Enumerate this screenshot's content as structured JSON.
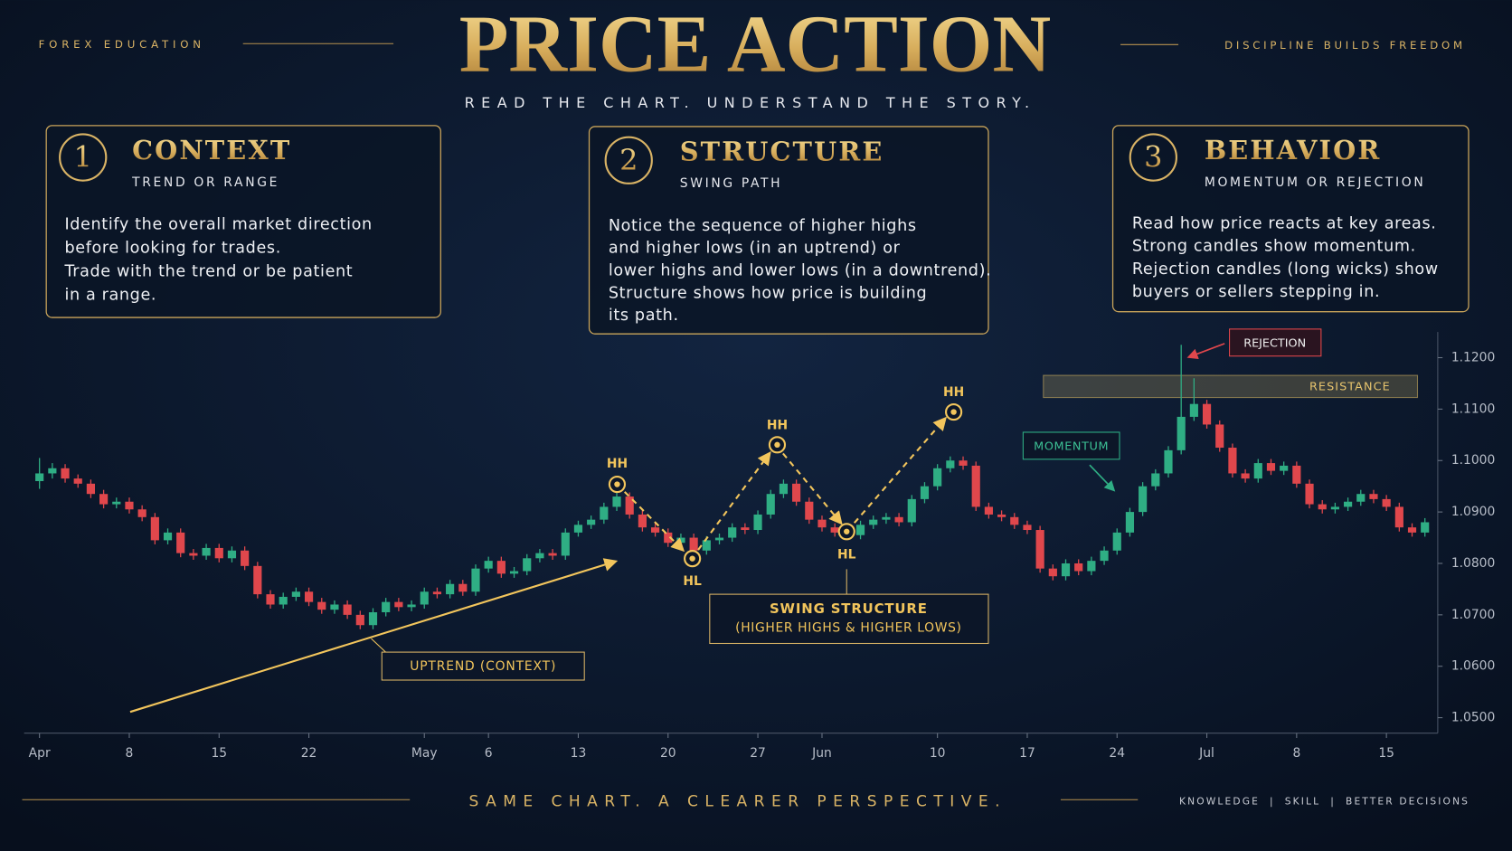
{
  "header": {
    "left_tag": "FOREX EDUCATION",
    "title": "PRICE ACTION",
    "subtitle": "READ THE CHART. UNDERSTAND THE STORY.",
    "right_tag": "DISCIPLINE BUILDS FREEDOM"
  },
  "cards": [
    {
      "number": "1",
      "title": "CONTEXT",
      "subtitle": "TREND OR RANGE",
      "body": [
        "Identify the overall market direction",
        "before looking for trades.",
        "Trade with the trend or be patient",
        "in a range."
      ]
    },
    {
      "number": "2",
      "title": "STRUCTURE",
      "subtitle": "SWING PATH",
      "body": [
        "Notice the sequence of higher highs",
        "and higher lows (in an uptrend) or",
        "lower highs and lower lows (in a downtrend).",
        "Structure shows how price is building",
        "its path."
      ]
    },
    {
      "number": "3",
      "title": "BEHAVIOR",
      "subtitle": "MOMENTUM OR REJECTION",
      "body": [
        "Read how price reacts at key areas.",
        "Strong candles show momentum.",
        "Rejection candles (long wicks) show",
        "buyers or sellers stepping in."
      ]
    }
  ],
  "chart_data": {
    "type": "candlestick",
    "up_color": "#2fae84",
    "down_color": "#e0474c",
    "xlim": [
      -1.5,
      109
    ],
    "xticks": [
      {
        "value": 0,
        "label": "Apr"
      },
      {
        "value": 7,
        "label": "8"
      },
      {
        "value": 14,
        "label": "15"
      },
      {
        "value": 21,
        "label": "22"
      },
      {
        "value": 30,
        "label": "May"
      },
      {
        "value": 35,
        "label": "6"
      },
      {
        "value": 42,
        "label": "13"
      },
      {
        "value": 49,
        "label": "20"
      },
      {
        "value": 56,
        "label": "27"
      },
      {
        "value": 61,
        "label": "Jun"
      },
      {
        "value": 70,
        "label": "10"
      },
      {
        "value": 77,
        "label": "17"
      },
      {
        "value": 84,
        "label": "24"
      },
      {
        "value": 91,
        "label": "Jul"
      },
      {
        "value": 98,
        "label": "8"
      },
      {
        "value": 105,
        "label": "15"
      }
    ],
    "ylim": [
      1.047,
      1.125
    ],
    "yticks": [
      {
        "value": 1.05,
        "label": "1.0500"
      },
      {
        "value": 1.06,
        "label": "1.0600"
      },
      {
        "value": 1.07,
        "label": "1.0700"
      },
      {
        "value": 1.08,
        "label": "1.0800"
      },
      {
        "value": 1.09,
        "label": "1.0900"
      },
      {
        "value": 1.1,
        "label": "1.1000"
      },
      {
        "value": 1.11,
        "label": "1.1100"
      },
      {
        "value": 1.12,
        "label": "1.1200"
      }
    ],
    "open": [
      1.096,
      1.0975,
      1.0985,
      1.0965,
      1.0955,
      1.0935,
      1.0915,
      1.092,
      1.0905,
      1.089,
      1.0845,
      1.086,
      1.082,
      1.0815,
      1.083,
      1.081,
      1.0825,
      1.0795,
      1.074,
      1.072,
      1.0735,
      1.0745,
      1.0725,
      1.071,
      1.072,
      1.07,
      1.068,
      1.0705,
      1.0725,
      1.0715,
      1.072,
      1.0745,
      1.074,
      1.076,
      1.0745,
      1.079,
      1.0805,
      1.078,
      1.0785,
      1.081,
      1.082,
      1.0815,
      1.086,
      1.0875,
      1.0885,
      1.091,
      1.093,
      1.0895,
      1.087,
      1.086,
      1.084,
      1.085,
      1.0825,
      1.0845,
      1.085,
      1.087,
      1.0865,
      1.0895,
      1.0935,
      1.0955,
      1.092,
      1.0885,
      1.087,
      1.086,
      1.0855,
      1.0875,
      1.0885,
      1.089,
      1.088,
      1.0925,
      1.095,
      1.0985,
      1.1,
      1.099,
      1.091,
      1.0895,
      1.089,
      1.0875,
      1.0865,
      1.079,
      1.0775,
      1.08,
      1.0785,
      1.0805,
      1.0825,
      1.086,
      1.09,
      1.095,
      1.0975,
      1.102,
      1.1085,
      1.111,
      1.107,
      1.1025,
      1.0975,
      1.0965,
      1.0995,
      1.098,
      1.099,
      1.0955,
      1.0915,
      1.0905,
      1.091,
      1.092,
      1.0935,
      1.0925,
      1.091,
      1.087,
      1.086
    ],
    "high": [
      1.1005,
      1.0995,
      1.0993,
      1.0973,
      1.0963,
      1.0943,
      1.0928,
      1.0928,
      1.0913,
      1.0898,
      1.0868,
      1.0868,
      1.0828,
      1.0838,
      1.0838,
      1.0833,
      1.0833,
      1.0803,
      1.0748,
      1.0743,
      1.0753,
      1.0753,
      1.0733,
      1.0728,
      1.0728,
      1.0708,
      1.0713,
      1.0733,
      1.0733,
      1.0728,
      1.0753,
      1.0753,
      1.0768,
      1.0768,
      1.0798,
      1.0813,
      1.0813,
      1.0793,
      1.0818,
      1.0828,
      1.0828,
      1.0868,
      1.0883,
      1.0893,
      1.0918,
      1.0938,
      1.0938,
      1.0903,
      1.0878,
      1.0868,
      1.0858,
      1.0858,
      1.0853,
      1.0858,
      1.0878,
      1.0878,
      1.0903,
      1.0943,
      1.0963,
      1.0963,
      1.0928,
      1.0893,
      1.0878,
      1.0868,
      1.0883,
      1.0893,
      1.0898,
      1.0898,
      1.0933,
      1.0958,
      1.0993,
      1.1008,
      1.1008,
      1.0998,
      1.0918,
      1.0903,
      1.0898,
      1.0883,
      1.0873,
      1.0798,
      1.0808,
      1.0808,
      1.0813,
      1.0833,
      1.0868,
      1.0908,
      1.0958,
      1.0983,
      1.1028,
      1.1225,
      1.116,
      1.1118,
      1.1078,
      1.1033,
      1.0983,
      1.1003,
      1.1003,
      1.0998,
      1.0998,
      1.0963,
      1.0923,
      1.0918,
      1.0928,
      1.0943,
      1.0943,
      1.0933,
      1.0918,
      1.0878,
      1.0888
    ],
    "low": [
      1.0945,
      1.0965,
      1.0957,
      1.0947,
      1.0927,
      1.0907,
      1.0907,
      1.0897,
      1.0882,
      1.0837,
      1.0837,
      1.0812,
      1.0807,
      1.0807,
      1.0802,
      1.0802,
      1.0787,
      1.0732,
      1.0712,
      1.0712,
      1.0727,
      1.0717,
      1.0702,
      1.0702,
      1.0692,
      1.0672,
      1.0672,
      1.0697,
      1.0707,
      1.0707,
      1.0712,
      1.0732,
      1.0732,
      1.0737,
      1.0737,
      1.0782,
      1.0772,
      1.0772,
      1.0777,
      1.0802,
      1.0807,
      1.0807,
      1.0852,
      1.0867,
      1.0877,
      1.0902,
      1.0887,
      1.0862,
      1.0852,
      1.0832,
      1.0832,
      1.0817,
      1.0817,
      1.0837,
      1.0842,
      1.0857,
      1.0857,
      1.0887,
      1.0927,
      1.0912,
      1.0877,
      1.0862,
      1.0852,
      1.0847,
      1.0847,
      1.0867,
      1.0877,
      1.0872,
      1.0872,
      1.0917,
      1.0942,
      1.0977,
      1.0982,
      1.0902,
      1.0887,
      1.0882,
      1.0867,
      1.0857,
      1.0782,
      1.0767,
      1.0767,
      1.0777,
      1.0777,
      1.0797,
      1.0817,
      1.0852,
      1.0892,
      1.0942,
      1.0967,
      1.1012,
      1.1077,
      1.1062,
      1.1017,
      1.0967,
      1.0957,
      1.0957,
      1.0972,
      1.0972,
      1.0947,
      1.0907,
      1.0897,
      1.0897,
      1.0902,
      1.0912,
      1.0917,
      1.0902,
      1.0862,
      1.0852,
      1.0852
    ],
    "close": [
      1.0975,
      1.0985,
      1.0965,
      1.0955,
      1.0935,
      1.0915,
      1.092,
      1.0905,
      1.089,
      1.0845,
      1.086,
      1.082,
      1.0815,
      1.083,
      1.081,
      1.0825,
      1.0795,
      1.074,
      1.072,
      1.0735,
      1.0745,
      1.0725,
      1.071,
      1.072,
      1.07,
      1.068,
      1.0705,
      1.0725,
      1.0715,
      1.072,
      1.0745,
      1.074,
      1.076,
      1.0745,
      1.079,
      1.0805,
      1.078,
      1.0785,
      1.081,
      1.082,
      1.0815,
      1.086,
      1.0875,
      1.0885,
      1.091,
      1.093,
      1.0895,
      1.087,
      1.086,
      1.084,
      1.085,
      1.0825,
      1.0845,
      1.085,
      1.087,
      1.0865,
      1.0895,
      1.0935,
      1.0955,
      1.092,
      1.0885,
      1.087,
      1.086,
      1.0855,
      1.0875,
      1.0885,
      1.089,
      1.088,
      1.0925,
      1.095,
      1.0985,
      1.1,
      1.099,
      1.091,
      1.0895,
      1.089,
      1.0875,
      1.0865,
      1.079,
      1.0775,
      1.08,
      1.0785,
      1.0805,
      1.0825,
      1.086,
      1.09,
      1.095,
      1.0975,
      1.102,
      1.1085,
      1.111,
      1.107,
      1.1025,
      1.0975,
      1.0965,
      1.0995,
      1.098,
      1.099,
      1.0955,
      1.0915,
      1.0905,
      1.091,
      1.092,
      1.0935,
      1.0925,
      1.091,
      1.087,
      1.086,
      1.088
    ],
    "annotations": [
      "HH",
      "HL",
      "HH",
      "HL",
      "HH",
      "UPTREND (CONTEXT)",
      "SWING STRUCTURE",
      "(HIGHER HIGHS & HIGHER LOWS)",
      "MOMENTUM",
      "REJECTION",
      "RESISTANCE"
    ]
  },
  "footer": {
    "tagline": "SAME CHART. A CLEARER PERSPECTIVE.",
    "right": "KNOWLEDGE  |  SKILL  |  BETTER DECISIONS"
  }
}
